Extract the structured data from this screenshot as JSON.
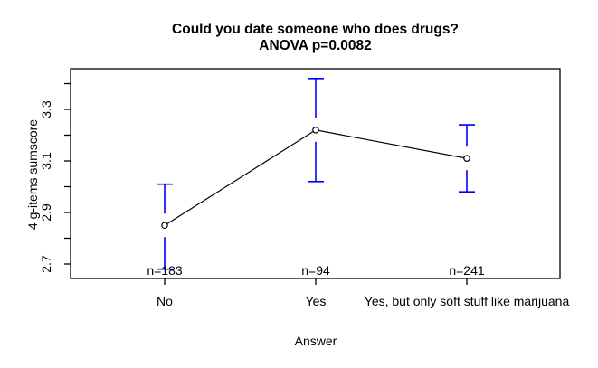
{
  "title": {
    "line1": "Could you date someone who does drugs?",
    "line2": "ANOVA p=0.0082"
  },
  "axes": {
    "x_label": "Answer",
    "y_label": "4 g-items sumscore"
  },
  "colors": {
    "errorbar": "#0000FF",
    "line": "#000000",
    "text": "#000000",
    "background": "#FFFFFF"
  },
  "chart_data": {
    "type": "line",
    "subtype": "means-with-95ci-errorbars",
    "title": "Could you date someone who does drugs?",
    "subtitle": "ANOVA p=0.0082",
    "xlabel": "Answer",
    "ylabel": "4 g-items sumscore",
    "categories": [
      "No",
      "Yes",
      "Yes, but only soft stuff like marijuana"
    ],
    "series": [
      {
        "name": "mean 4 g-items sumscore",
        "values": [
          2.85,
          3.22,
          3.11
        ]
      }
    ],
    "error_bars": {
      "low": [
        2.68,
        3.02,
        2.98
      ],
      "high": [
        3.01,
        3.42,
        3.24
      ]
    },
    "n_labels": [
      "n=183",
      "n=94",
      "n=241"
    ],
    "ylim": [
      2.645,
      3.45
    ],
    "y_ticks": [
      2.7,
      2.8,
      2.9,
      3.0,
      3.1,
      3.2,
      3.3,
      3.4
    ],
    "y_tick_labels_shown": [
      "2.7",
      "2.9",
      "3.1",
      "3.3"
    ],
    "grid": false,
    "legend": "none",
    "marker": "open-circle",
    "errorbar_color": "#0000FF",
    "line_color": "#000000"
  }
}
